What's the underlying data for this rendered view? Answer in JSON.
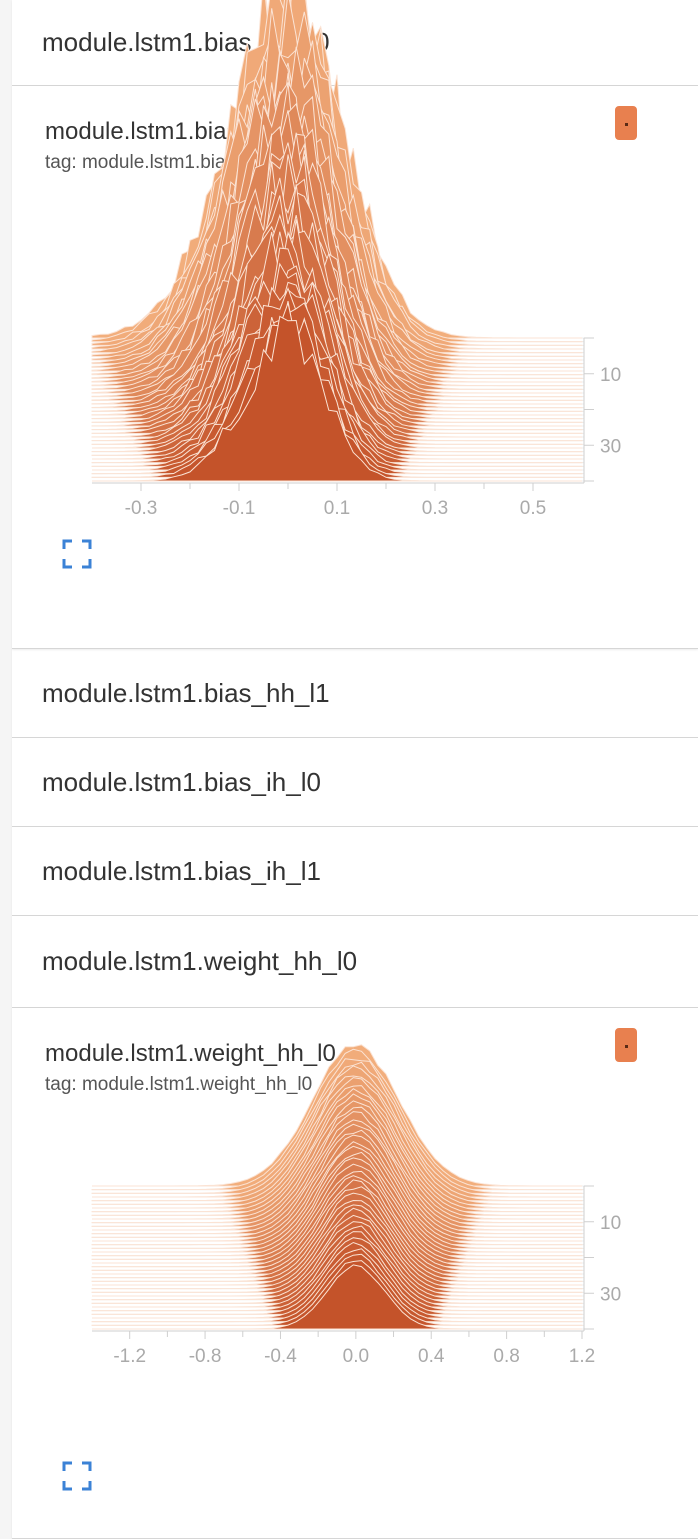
{
  "sections": {
    "bias_hh_l0": "module.lstm1.bias_hh_l0",
    "bias_hh_l1": "module.lstm1.bias_hh_l1",
    "bias_ih_l0": "module.lstm1.bias_ih_l0",
    "bias_ih_l1": "module.lstm1.bias_ih_l1",
    "weight_hh_l0": "module.lstm1.weight_hh_l0"
  },
  "cards": [
    {
      "title": "module.lstm1.bias_hh_l0",
      "tag": "tag: module.lstm1.bias_hh_l0",
      "run_color": "#e8804f",
      "expand_icon": "fullscreen-icon"
    },
    {
      "title": "module.lstm1.weight_hh_l0",
      "tag": "tag: module.lstm1.weight_hh_l0",
      "run_color": "#e8804f",
      "expand_icon": "fullscreen-icon"
    }
  ],
  "chart_data": [
    {
      "type": "area",
      "kind": "histogram-ridge",
      "title": "module.lstm1.bias_hh_l0",
      "x_ticks": [
        "-0.3",
        "-0.1",
        "0.1",
        "0.3",
        "0.5"
      ],
      "x_tick_values": [
        -0.3,
        -0.1,
        0.1,
        0.3,
        0.5
      ],
      "xlim": [
        -0.4,
        0.6
      ],
      "y_ticks": [
        "10",
        "30"
      ],
      "y_tick_values": [
        10,
        30
      ],
      "steps": 40,
      "front_color": "#c4532a",
      "back_color": "#f2ae7c",
      "peak_values": [
        -0.05,
        0.0,
        0.04
      ],
      "grid": false
    },
    {
      "type": "area",
      "kind": "histogram-ridge",
      "title": "module.lstm1.weight_hh_l0",
      "x_ticks": [
        "-1.2",
        "-0.8",
        "-0.4",
        "0.0",
        "0.4",
        "0.8",
        "1.2"
      ],
      "x_tick_values": [
        -1.2,
        -0.8,
        -0.4,
        0.0,
        0.4,
        0.8,
        1.2
      ],
      "xlim": [
        -1.4,
        1.2
      ],
      "y_ticks": [
        "10",
        "30"
      ],
      "y_tick_values": [
        10,
        30
      ],
      "steps": 40,
      "front_color": "#c4532a",
      "back_color": "#f2ae7c",
      "peak_values": [
        0.0
      ],
      "grid": false
    }
  ]
}
